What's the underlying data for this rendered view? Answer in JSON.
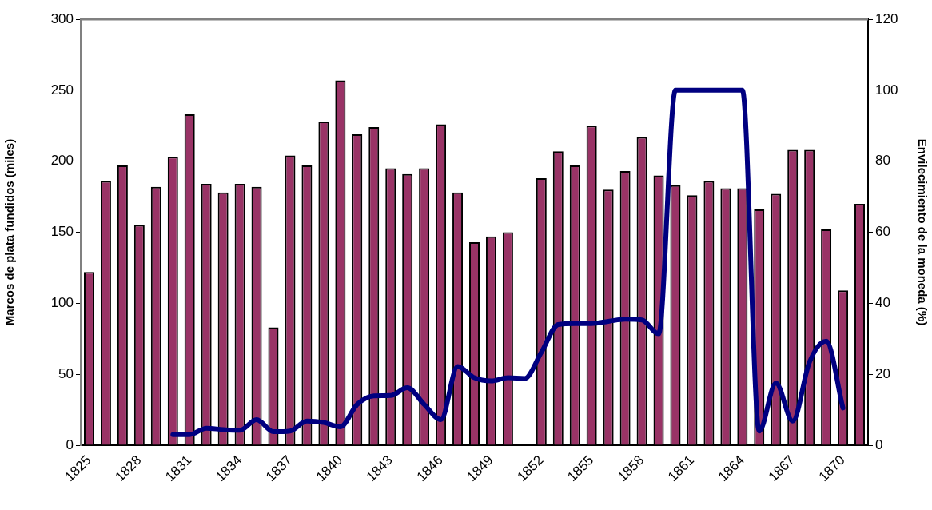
{
  "chart_data": {
    "type": "bar",
    "ylabel": "Marcos de plata fundidos (miles)",
    "y2label": "Envilecimiento de la moneda (%)",
    "categories": [
      "1825",
      null,
      null,
      "1828",
      null,
      null,
      "1831",
      null,
      null,
      "1834",
      null,
      null,
      "1837",
      null,
      null,
      "1840",
      null,
      null,
      "1843",
      null,
      null,
      "1846",
      null,
      null,
      "1849",
      null,
      null,
      "1852",
      null,
      null,
      "1855",
      null,
      null,
      "1858",
      null,
      null,
      "1861",
      null,
      null,
      "1864",
      null,
      null,
      "1867",
      null,
      null,
      "1870",
      null
    ],
    "series": [
      {
        "color": "#993366",
        "values": [
          122,
          186,
          197,
          155,
          182,
          203,
          233,
          184,
          178,
          184,
          182,
          83,
          204,
          197,
          228,
          257,
          219,
          224,
          195,
          191,
          195,
          226,
          178,
          143,
          147,
          150,
          null,
          188,
          207,
          197,
          225,
          180,
          193,
          217,
          190,
          183,
          176,
          186,
          181,
          181,
          166,
          177,
          208,
          208,
          152,
          109,
          170
        ]
      },
      {
        "type": "line",
        "axis": "y2",
        "color": "#000080",
        "values": [
          null,
          null,
          null,
          null,
          null,
          3,
          3,
          4.8,
          4.4,
          4.2,
          7.2,
          3.8,
          4,
          6.8,
          6.4,
          5.2,
          11.5,
          13.9,
          14,
          16.2,
          11.5,
          7.2,
          22.2,
          19,
          18.1,
          19,
          18.8,
          26.2,
          34,
          34.3,
          34.3,
          34.9,
          35.5,
          35.3,
          31.4,
          100,
          100,
          100,
          100,
          100,
          4,
          17.5,
          6.8,
          23.4,
          29.3,
          10.5,
          null
        ]
      }
    ],
    "ylim": [
      0,
      300
    ],
    "yticks": [
      0,
      50,
      100,
      150,
      200,
      250,
      300
    ],
    "y2lim": [
      0,
      120
    ],
    "y2ticks": [
      0,
      20,
      40,
      60,
      80,
      100,
      120
    ],
    "grid": false,
    "legend": false
  }
}
